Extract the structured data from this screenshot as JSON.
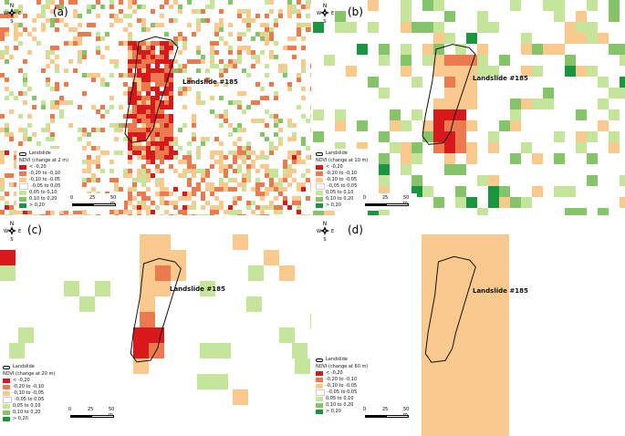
{
  "colors": {
    "lt_m020": "#d7191c",
    "m020_m010": "#ec7a4f",
    "m010_m005": "#f9c98e",
    "m005_005": "#ffffff",
    "p005_010": "#c4e59a",
    "p010_020": "#86c46a",
    "gt_020": "#1a9641"
  },
  "compass": {
    "n": "N",
    "s": "S",
    "w": "W",
    "e": "E"
  },
  "legend_common": {
    "landslide_label": "Landslide",
    "classes": [
      "< -0,20",
      "-0,20 to -0,10",
      "-0,10 to -0,05",
      "-0,05 to 0,05",
      "0,05 to 0,10",
      "0,10 to 0,20",
      "> 0,20"
    ]
  },
  "scale": {
    "ticks": [
      "0",
      "25",
      "50 m"
    ]
  },
  "panels": [
    {
      "id": "a",
      "label": "(a)",
      "landslide_label": "Landslide #185",
      "ndvi_title": "NDVI (change at 2 m)"
    },
    {
      "id": "b",
      "label": "(b)",
      "landslide_label": "Landslide #185",
      "ndvi_title": "NDVI (change at 10 m)"
    },
    {
      "id": "c",
      "label": "(c)",
      "landslide_label": "Landslide #185",
      "ndvi_title": "NDVI (change at 20 m)"
    },
    {
      "id": "d",
      "label": "(d)",
      "landslide_label": "Landslide #185",
      "ndvi_title": "NDVI (change at 60 m)"
    }
  ]
}
